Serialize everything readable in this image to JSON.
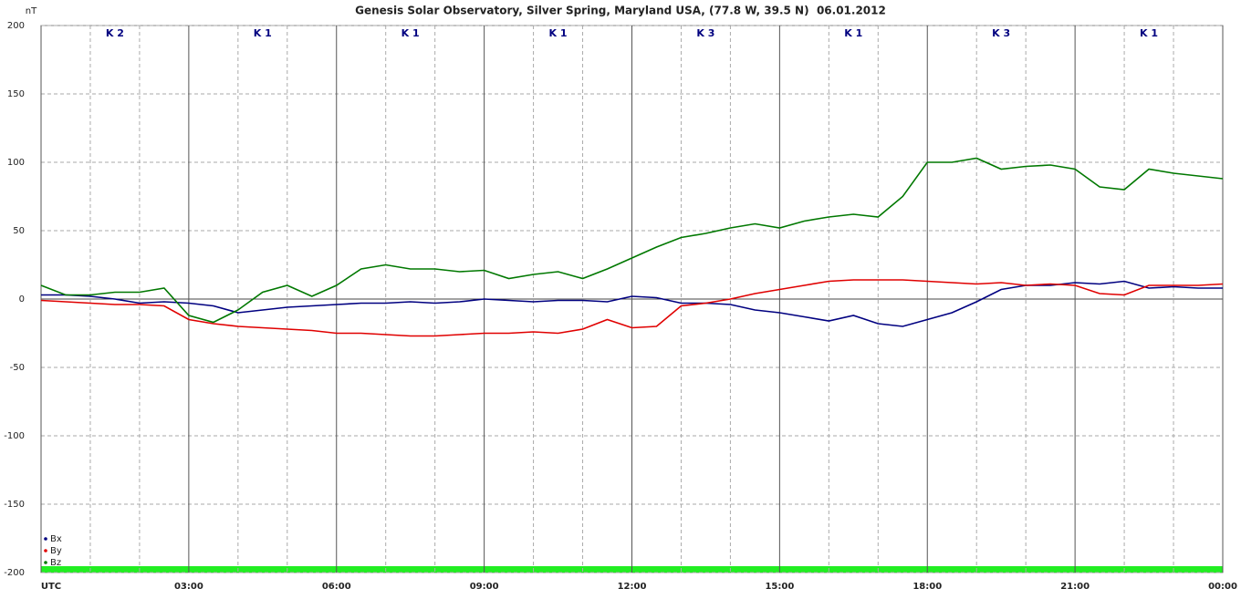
{
  "chart_data": {
    "type": "line",
    "title": "Genesis Solar Observatory, Silver Spring, Maryland USA, (77.8 W, 39.5 N)  06.01.2012",
    "y_label": "nT",
    "k_indices": [
      "K 2",
      "K 1",
      "K 1",
      "K 1",
      "K 3",
      "K 1",
      "K 3",
      "K 1"
    ],
    "x": [
      0,
      0.5,
      1,
      1.5,
      2,
      2.5,
      3,
      3.5,
      4,
      4.5,
      5,
      5.5,
      6,
      6.5,
      7,
      7.5,
      8,
      8.5,
      9,
      9.5,
      10,
      10.5,
      11,
      11.5,
      12,
      12.5,
      13,
      13.5,
      14,
      14.5,
      15,
      15.5,
      16,
      16.5,
      17,
      17.5,
      18,
      18.5,
      19,
      19.5,
      20,
      20.5,
      21,
      21.5,
      22,
      22.5,
      23,
      23.5,
      24
    ],
    "series": [
      {
        "name": "Bx",
        "color": "#000080",
        "values": [
          3,
          3,
          2,
          0,
          -3,
          -2,
          -3,
          -5,
          -10,
          -8,
          -6,
          -5,
          -4,
          -3,
          -3,
          -2,
          -3,
          -2,
          0,
          -1,
          -2,
          -1,
          -1,
          -2,
          2,
          1,
          -3,
          -3,
          -4,
          -8,
          -10,
          -13,
          -16,
          -12,
          -18,
          -20,
          -15,
          -10,
          -2,
          7,
          10,
          10,
          12,
          11,
          13,
          8,
          9,
          8,
          8
        ]
      },
      {
        "name": "By",
        "color": "#e00000",
        "values": [
          -1,
          -2,
          -3,
          -4,
          -4,
          -5,
          -15,
          -18,
          -20,
          -21,
          -22,
          -23,
          -25,
          -25,
          -26,
          -27,
          -27,
          -26,
          -25,
          -25,
          -24,
          -25,
          -22,
          -15,
          -21,
          -20,
          -5,
          -3,
          0,
          4,
          7,
          10,
          13,
          14,
          14,
          14,
          13,
          12,
          11,
          12,
          10,
          11,
          10,
          4,
          3,
          10,
          10,
          10,
          11
        ]
      },
      {
        "name": "Bz",
        "color": "#007800",
        "values": [
          10,
          3,
          3,
          5,
          5,
          8,
          -12,
          -17,
          -8,
          5,
          10,
          2,
          10,
          22,
          25,
          22,
          22,
          20,
          21,
          15,
          18,
          20,
          15,
          22,
          30,
          38,
          45,
          48,
          52,
          55,
          52,
          57,
          60,
          62,
          60,
          75,
          100,
          100,
          103,
          95,
          97,
          98,
          95,
          82,
          80,
          95,
          92,
          90,
          88
        ]
      }
    ],
    "xlim": [
      0,
      24
    ],
    "xticks": [
      {
        "value": 0,
        "label": "UTC"
      },
      {
        "value": 3,
        "label": "03:00"
      },
      {
        "value": 6,
        "label": "06:00"
      },
      {
        "value": 9,
        "label": "09:00"
      },
      {
        "value": 12,
        "label": "12:00"
      },
      {
        "value": 15,
        "label": "15:00"
      },
      {
        "value": 18,
        "label": "18:00"
      },
      {
        "value": 21,
        "label": "21:00"
      },
      {
        "value": 24,
        "label": "00:00"
      }
    ],
    "ylim": [
      -200,
      200
    ],
    "yticks": [
      -200,
      -150,
      -100,
      -50,
      0,
      50,
      100,
      150,
      200
    ],
    "grid": true
  }
}
